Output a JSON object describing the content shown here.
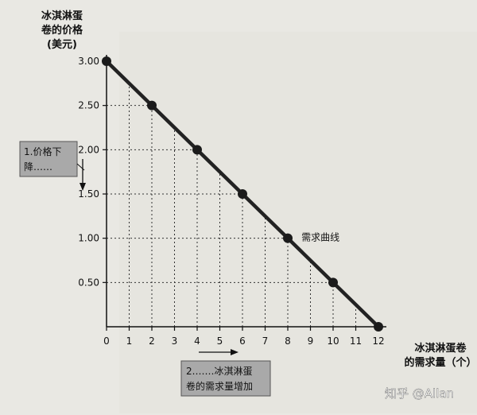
{
  "chart_data": {
    "type": "line",
    "ylabel_lines": [
      "冰淇淋蛋",
      "卷的价格",
      "(美元)"
    ],
    "xlabel_lines": [
      "冰淇淋蛋卷",
      "的需求量（个）"
    ],
    "x_ticks": [
      "0",
      "1",
      "2",
      "3",
      "4",
      "5",
      "6",
      "7",
      "8",
      "9",
      "10",
      "11",
      "12"
    ],
    "y_ticks": [
      "0.50",
      "1.00",
      "1.50",
      "2.00",
      "2.50",
      "3.00"
    ],
    "xlim": [
      0,
      12
    ],
    "ylim": [
      0,
      3
    ],
    "series": [
      {
        "name": "需求曲线",
        "x": [
          0,
          2,
          4,
          6,
          8,
          10,
          12
        ],
        "y": [
          3.0,
          2.5,
          2.0,
          1.5,
          1.0,
          0.5,
          0.0
        ]
      }
    ],
    "grid": "dotted",
    "annotations": {
      "price_note_lines": [
        "1.价格下",
        "降……"
      ],
      "quantity_note_lines": [
        "2.……冰淇淋蛋",
        "卷的需求量增加"
      ]
    }
  },
  "watermark": "知乎 @Allan",
  "colors": {
    "line": "#222222",
    "note_box": "#a9a9a9",
    "background": "#e9e8e3"
  }
}
